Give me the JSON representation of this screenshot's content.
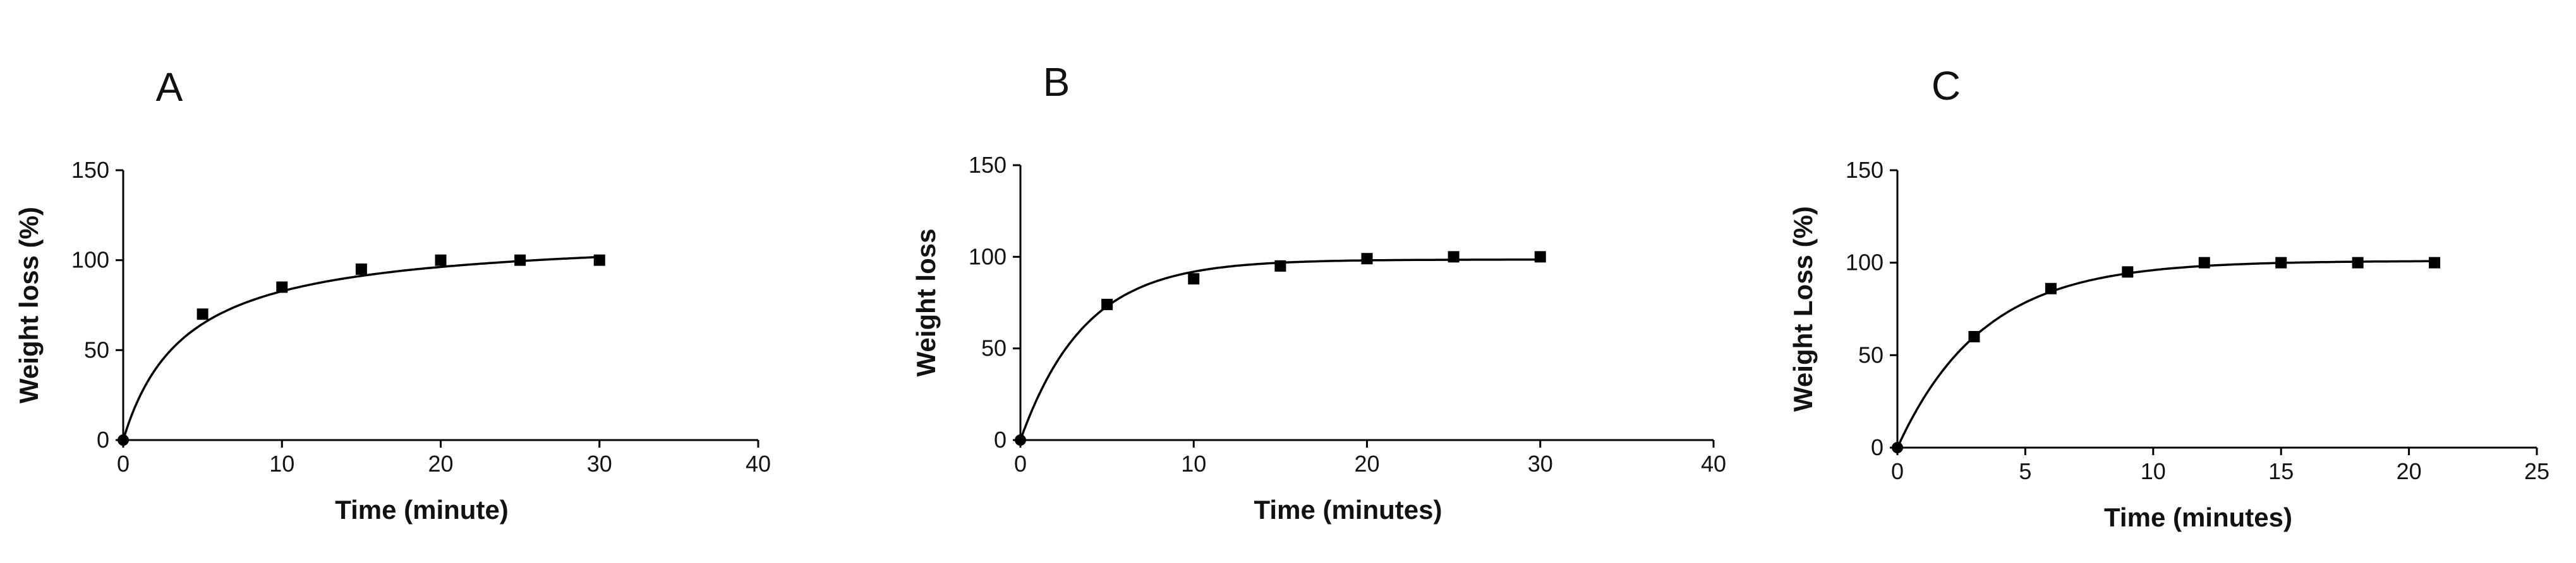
{
  "chart_data": [
    {
      "type": "scatter",
      "panel_label": "A",
      "xlabel": "Time (minute)",
      "ylabel": "Weight loss (%)",
      "xlim": [
        0,
        40
      ],
      "ylim": [
        0,
        150
      ],
      "xticks": [
        0,
        10,
        20,
        30,
        40
      ],
      "yticks": [
        0,
        50,
        100,
        150
      ],
      "grid": false,
      "series": [
        {
          "x": [
            0,
            5,
            10,
            15,
            20,
            25,
            30
          ],
          "y": [
            0,
            70,
            85,
            95,
            100,
            100,
            100
          ]
        }
      ],
      "fit_curve": {
        "model": "hyperbolic",
        "params": {
          "vmax": 115,
          "k": 3.9
        }
      }
    },
    {
      "type": "scatter",
      "panel_label": "B",
      "xlabel": "Time (minutes)",
      "ylabel": "Weight loss",
      "xlim": [
        0,
        40
      ],
      "ylim": [
        0,
        150
      ],
      "xticks": [
        0,
        10,
        20,
        30,
        40
      ],
      "yticks": [
        0,
        50,
        100,
        150
      ],
      "grid": false,
      "series": [
        {
          "x": [
            0,
            5,
            10,
            15,
            20,
            25,
            30
          ],
          "y": [
            0,
            74,
            88,
            95,
            99,
            100,
            100
          ]
        }
      ],
      "fit_curve": {
        "model": "exponential",
        "params": {
          "ymax": 98.5,
          "k": 0.27
        }
      }
    },
    {
      "type": "scatter",
      "panel_label": "C",
      "xlabel": "Time (minutes)",
      "ylabel": "Weight Loss (%)",
      "xlim": [
        0,
        25
      ],
      "ylim": [
        0,
        150
      ],
      "xticks": [
        0,
        5,
        10,
        15,
        20,
        25
      ],
      "yticks": [
        0,
        50,
        100,
        150
      ],
      "grid": false,
      "series": [
        {
          "x": [
            0,
            3,
            6,
            9,
            12,
            15,
            18,
            21
          ],
          "y": [
            0,
            60,
            86,
            95,
            100,
            100,
            100,
            100
          ]
        }
      ],
      "fit_curve": {
        "model": "exponential",
        "params": {
          "ymax": 101,
          "k": 0.3
        }
      }
    }
  ]
}
